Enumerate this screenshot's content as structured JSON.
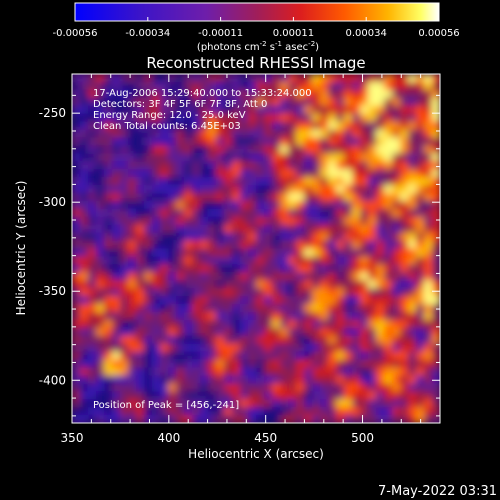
{
  "colorbar": {
    "ticks": [
      "-0.00056",
      "-0.00034",
      "-0.00011",
      "0.00011",
      "0.00034",
      "0.00056"
    ],
    "units_line": "(photons cm",
    "units_sup1": "-2",
    "units_mid": " s",
    "units_sup2": "-1",
    "units_end": " asec",
    "units_sup3": "-2",
    "units_close": ")"
  },
  "footer": {
    "timestamp": "7-May-2022 03:31"
  },
  "chart_data": {
    "type": "heatmap",
    "title": "Reconstructed RHESSI Image",
    "xlabel": "Heliocentric X (arcsec)",
    "ylabel": "Heliocentric Y (arcsec)",
    "xlim": [
      350,
      540
    ],
    "ylim": [
      -424,
      -228
    ],
    "x_ticks": [
      350,
      400,
      450,
      500
    ],
    "y_ticks": [
      -250,
      -300,
      -350,
      -400
    ],
    "annotations": [
      "17-Aug-2006 15:29:40.000 to 15:33:24.000",
      "Detectors: 3F 4F 5F 6F 7F 8F, Att 0",
      "Energy Range: 12.0 - 25.0 keV",
      "Clean     Total counts: 6.45E+03"
    ],
    "peak_label": "Position of Peak = [456,-241]",
    "peak_x": 456,
    "peak_y": -241,
    "value_range": [
      -0.00056,
      0.00056
    ]
  }
}
